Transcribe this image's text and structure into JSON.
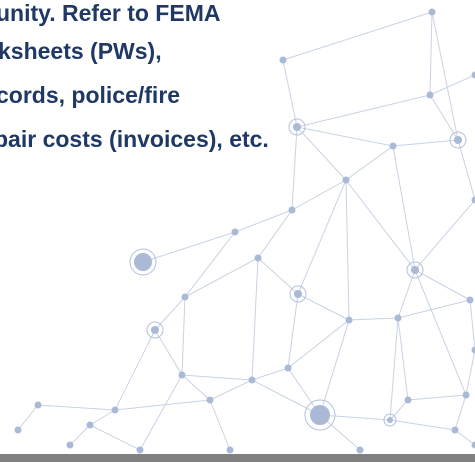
{
  "text_lines": [
    "unity.  Refer to FEMA",
    "ksheets (PWs),",
    "cords, police/fire",
    "pair costs (invoices), etc."
  ]
}
